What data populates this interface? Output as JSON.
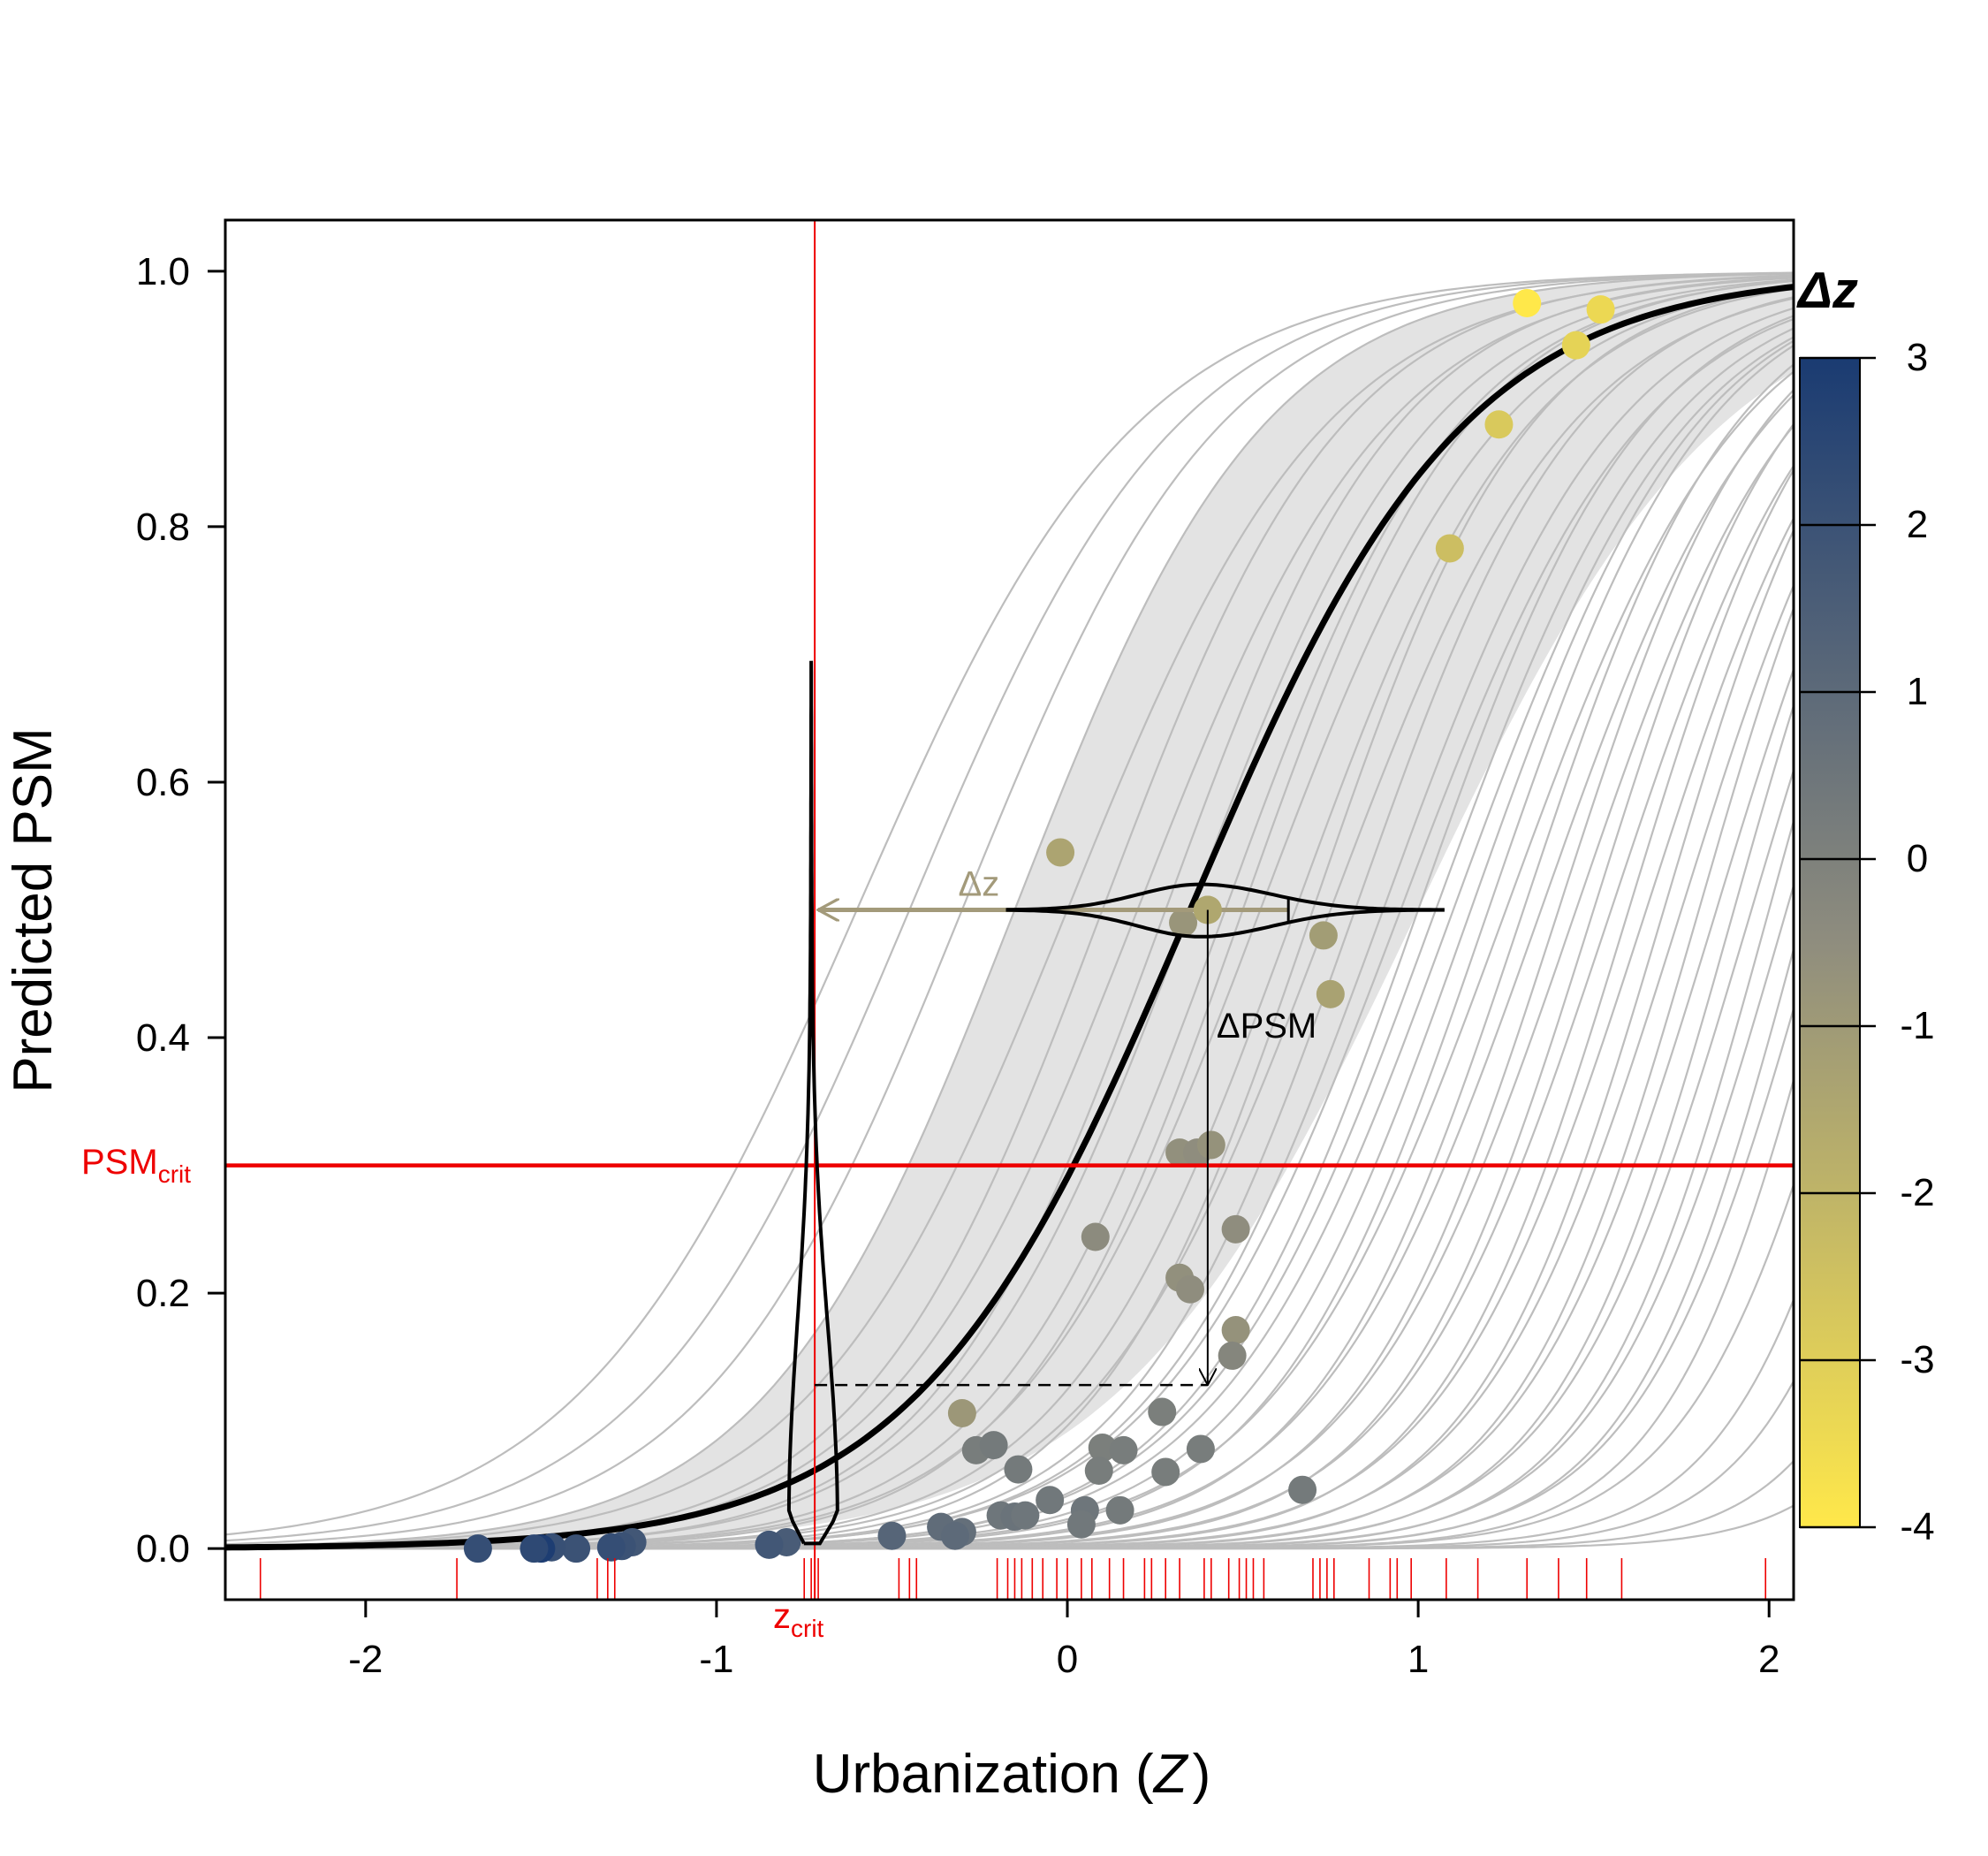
{
  "chart_data": {
    "type": "line",
    "xlabel_main": "Urbanization (",
    "xlabel_var": "Z",
    "xlabel_close": ")",
    "ylabel": "Predicted PSM",
    "xlim": [
      -2.4,
      2.07
    ],
    "ylim": [
      -0.04,
      1.04
    ],
    "x_ticks": [
      -2,
      -1,
      0,
      1,
      2
    ],
    "x_tick_labels": [
      "-2",
      "-1",
      "0",
      "1",
      "2"
    ],
    "y_ticks": [
      0.0,
      0.2,
      0.4,
      0.6,
      0.8,
      1.0
    ],
    "y_tick_labels": [
      "0.0",
      "0.2",
      "0.4",
      "0.6",
      "0.8",
      "1.0"
    ],
    "grid": false,
    "colors": {
      "mean_curve": "#000000",
      "band": "#e3e3e3",
      "site_curves": "#bdbdbd",
      "critical": "#ee0000",
      "dz_arrow": "#a39a7a"
    },
    "mean_curve": {
      "center": 0.35,
      "slope": 2.55
    },
    "band": {
      "upper": {
        "center": -0.15,
        "slope": 2.8
      },
      "lower": {
        "center": 1.0,
        "slope": 2.3
      }
    },
    "site_curve_params": [
      [
        -0.6,
        2.5
      ],
      [
        -0.45,
        2.6
      ],
      [
        -0.3,
        2.7
      ],
      [
        -0.15,
        2.8
      ],
      [
        0.0,
        2.7
      ],
      [
        0.1,
        2.9
      ],
      [
        0.2,
        2.8
      ],
      [
        0.28,
        3.0
      ],
      [
        0.35,
        2.9
      ],
      [
        0.45,
        3.0
      ],
      [
        0.55,
        2.9
      ],
      [
        0.65,
        3.0
      ],
      [
        0.75,
        2.9
      ],
      [
        0.82,
        3.1
      ],
      [
        0.9,
        3.0
      ],
      [
        0.95,
        2.9
      ],
      [
        1.0,
        3.1
      ],
      [
        1.05,
        3.0
      ],
      [
        1.1,
        3.0
      ],
      [
        1.15,
        3.1
      ],
      [
        1.2,
        3.2
      ],
      [
        1.25,
        3.0
      ],
      [
        1.3,
        3.3
      ],
      [
        1.35,
        3.1
      ],
      [
        1.4,
        3.4
      ],
      [
        1.45,
        3.2
      ],
      [
        1.5,
        3.5
      ],
      [
        1.55,
        3.3
      ],
      [
        1.6,
        3.6
      ],
      [
        1.65,
        3.4
      ],
      [
        1.7,
        3.7
      ],
      [
        1.75,
        3.5
      ],
      [
        1.8,
        3.8
      ],
      [
        1.85,
        3.6
      ],
      [
        1.9,
        3.9
      ],
      [
        1.95,
        3.7
      ],
      [
        2.0,
        4.0
      ],
      [
        2.05,
        3.8
      ],
      [
        2.1,
        4.1
      ],
      [
        2.15,
        3.9
      ],
      [
        2.2,
        4.2
      ],
      [
        2.3,
        4.0
      ],
      [
        2.4,
        4.3
      ],
      [
        2.5,
        4.4
      ],
      [
        2.65,
        4.5
      ],
      [
        2.8,
        4.6
      ],
      [
        0.5,
        3.1
      ],
      [
        0.7,
        3.2
      ]
    ],
    "points": [
      {
        "x": 1.31,
        "y": 0.975,
        "dz": -4.0
      },
      {
        "x": 1.52,
        "y": 0.97,
        "dz": -3.4
      },
      {
        "x": 1.45,
        "y": 0.942,
        "dz": -3.2
      },
      {
        "x": 1.23,
        "y": 0.88,
        "dz": -2.8
      },
      {
        "x": 1.09,
        "y": 0.783,
        "dz": -2.4
      },
      {
        "x": -0.02,
        "y": 0.545,
        "dz": -1.4
      },
      {
        "x": 0.4,
        "y": 0.5,
        "dz": -1.5
      },
      {
        "x": 0.33,
        "y": 0.49,
        "dz": -0.8
      },
      {
        "x": 0.73,
        "y": 0.48,
        "dz": -1.1
      },
      {
        "x": 0.75,
        "y": 0.434,
        "dz": -1.3
      },
      {
        "x": 0.32,
        "y": 0.31,
        "dz": -0.6
      },
      {
        "x": 0.37,
        "y": 0.31,
        "dz": -0.5
      },
      {
        "x": 0.41,
        "y": 0.316,
        "dz": -0.7
      },
      {
        "x": 0.08,
        "y": 0.244,
        "dz": -0.4
      },
      {
        "x": 0.48,
        "y": 0.25,
        "dz": -0.5
      },
      {
        "x": 0.32,
        "y": 0.212,
        "dz": -0.6
      },
      {
        "x": 0.35,
        "y": 0.203,
        "dz": -0.5
      },
      {
        "x": 0.48,
        "y": 0.171,
        "dz": -0.7
      },
      {
        "x": 0.47,
        "y": 0.151,
        "dz": -0.2
      },
      {
        "x": -0.3,
        "y": 0.106,
        "dz": -0.9
      },
      {
        "x": 0.27,
        "y": 0.107,
        "dz": 0.1
      },
      {
        "x": -0.26,
        "y": 0.077,
        "dz": 0.2
      },
      {
        "x": -0.21,
        "y": 0.081,
        "dz": 0.3
      },
      {
        "x": 0.1,
        "y": 0.079,
        "dz": 0.1
      },
      {
        "x": 0.16,
        "y": 0.077,
        "dz": 0.2
      },
      {
        "x": 0.38,
        "y": 0.078,
        "dz": 0.2
      },
      {
        "x": -0.14,
        "y": 0.062,
        "dz": 0.3
      },
      {
        "x": 0.09,
        "y": 0.061,
        "dz": 0.2
      },
      {
        "x": 0.28,
        "y": 0.06,
        "dz": 0.2
      },
      {
        "x": 0.67,
        "y": 0.046,
        "dz": 0.3
      },
      {
        "x": -0.05,
        "y": 0.038,
        "dz": 0.4
      },
      {
        "x": 0.05,
        "y": 0.03,
        "dz": 0.5
      },
      {
        "x": 0.15,
        "y": 0.03,
        "dz": 0.3
      },
      {
        "x": -0.19,
        "y": 0.026,
        "dz": 0.5
      },
      {
        "x": -0.15,
        "y": 0.025,
        "dz": 0.6
      },
      {
        "x": -0.12,
        "y": 0.026,
        "dz": 0.5
      },
      {
        "x": 0.04,
        "y": 0.019,
        "dz": 0.4
      },
      {
        "x": -0.36,
        "y": 0.017,
        "dz": 0.9
      },
      {
        "x": -0.3,
        "y": 0.013,
        "dz": 0.8
      },
      {
        "x": -0.32,
        "y": 0.01,
        "dz": 1.0
      },
      {
        "x": -0.5,
        "y": 0.01,
        "dz": 1.2
      },
      {
        "x": -0.8,
        "y": 0.005,
        "dz": 1.6
      },
      {
        "x": -0.85,
        "y": 0.003,
        "dz": 1.8
      },
      {
        "x": -1.24,
        "y": 0.005,
        "dz": 1.8
      },
      {
        "x": -1.27,
        "y": 0.002,
        "dz": 2.0
      },
      {
        "x": -1.3,
        "y": 0.001,
        "dz": 2.2
      },
      {
        "x": -1.4,
        "y": 0.0,
        "dz": 2.0
      },
      {
        "x": -1.47,
        "y": 0.001,
        "dz": 2.1
      },
      {
        "x": -1.5,
        "y": 0.0,
        "dz": 2.9
      },
      {
        "x": -1.52,
        "y": 0.0,
        "dz": 2.4
      },
      {
        "x": -1.68,
        "y": 0.0,
        "dz": 2.2
      }
    ],
    "rug_x": [
      -2.3,
      -1.74,
      -1.34,
      -1.31,
      -1.29,
      -0.75,
      -0.73,
      -0.71,
      -0.48,
      -0.45,
      -0.43,
      -0.2,
      -0.17,
      -0.15,
      -0.13,
      -0.1,
      -0.07,
      -0.03,
      0.0,
      0.04,
      0.07,
      0.12,
      0.16,
      0.22,
      0.24,
      0.28,
      0.32,
      0.39,
      0.41,
      0.46,
      0.49,
      0.51,
      0.53,
      0.56,
      0.7,
      0.72,
      0.74,
      0.76,
      0.86,
      0.92,
      0.94,
      0.98,
      1.08,
      1.17,
      1.31,
      1.4,
      1.48,
      1.58,
      1.99
    ],
    "critical": {
      "z_crit": -0.72,
      "psm_crit": 0.3,
      "z_crit_label": "z",
      "z_crit_sub": "crit",
      "psm_crit_label": "PSM",
      "psm_crit_sub": "crit"
    },
    "annotations": {
      "example_point": {
        "x": 0.4,
        "y": 0.5
      },
      "dz_label": "Δz",
      "dpsm_label": "ΔPSM",
      "dpsm_target_y": 0.128,
      "horizontal_violin": {
        "center_y": 0.5,
        "x_start": -0.17,
        "x_end": 1.07,
        "peak_x": 0.38,
        "half_width": 0.02
      },
      "vertical_violin": {
        "center_x": -0.73,
        "y_bottom": 0.004,
        "y_top": 0.695,
        "half_width": 0.07
      },
      "dz_arrow_end_x": -0.72,
      "dz_whisker_x": 0.63
    },
    "legend": {
      "title": "Δz",
      "range": [
        -4,
        3
      ],
      "ticks": [
        3,
        2,
        1,
        0,
        -1,
        -2,
        -3,
        -4
      ],
      "tick_labels": [
        "3",
        "2",
        "1",
        "0",
        "-1",
        "-2",
        "-3",
        "-4"
      ],
      "colors": [
        "#ffe84a",
        "#8f8d7e",
        "#1a3b72"
      ],
      "placement": "right"
    }
  }
}
